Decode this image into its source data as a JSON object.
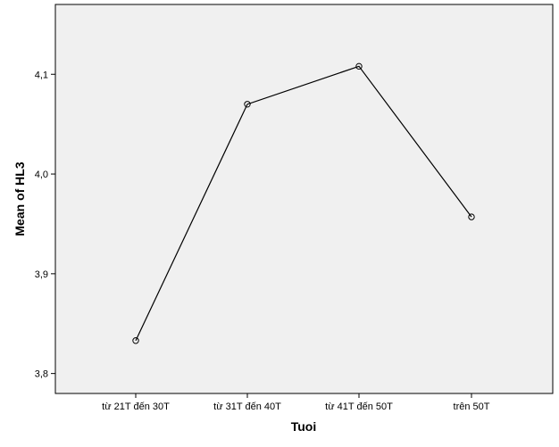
{
  "chart_data": {
    "type": "line",
    "xlabel": "Tuoi",
    "ylabel": "Mean of HL3",
    "categories": [
      "từ 21T đến 30T",
      "từ 31T đến 40T",
      "từ 41T đến 50T",
      "trên 50T"
    ],
    "series": [
      {
        "values": [
          3.833,
          4.07,
          4.108,
          3.957
        ]
      }
    ],
    "ylim": [
      3.78,
      4.17
    ],
    "yticks": [
      3.8,
      3.9,
      4.0,
      4.1
    ],
    "ytick_labels": [
      "3,8",
      "3,9",
      "4,0",
      "4,1"
    ],
    "grid": false,
    "background": "#f0f0f0",
    "line_color": "#000000",
    "marker": "hollow-circle"
  }
}
